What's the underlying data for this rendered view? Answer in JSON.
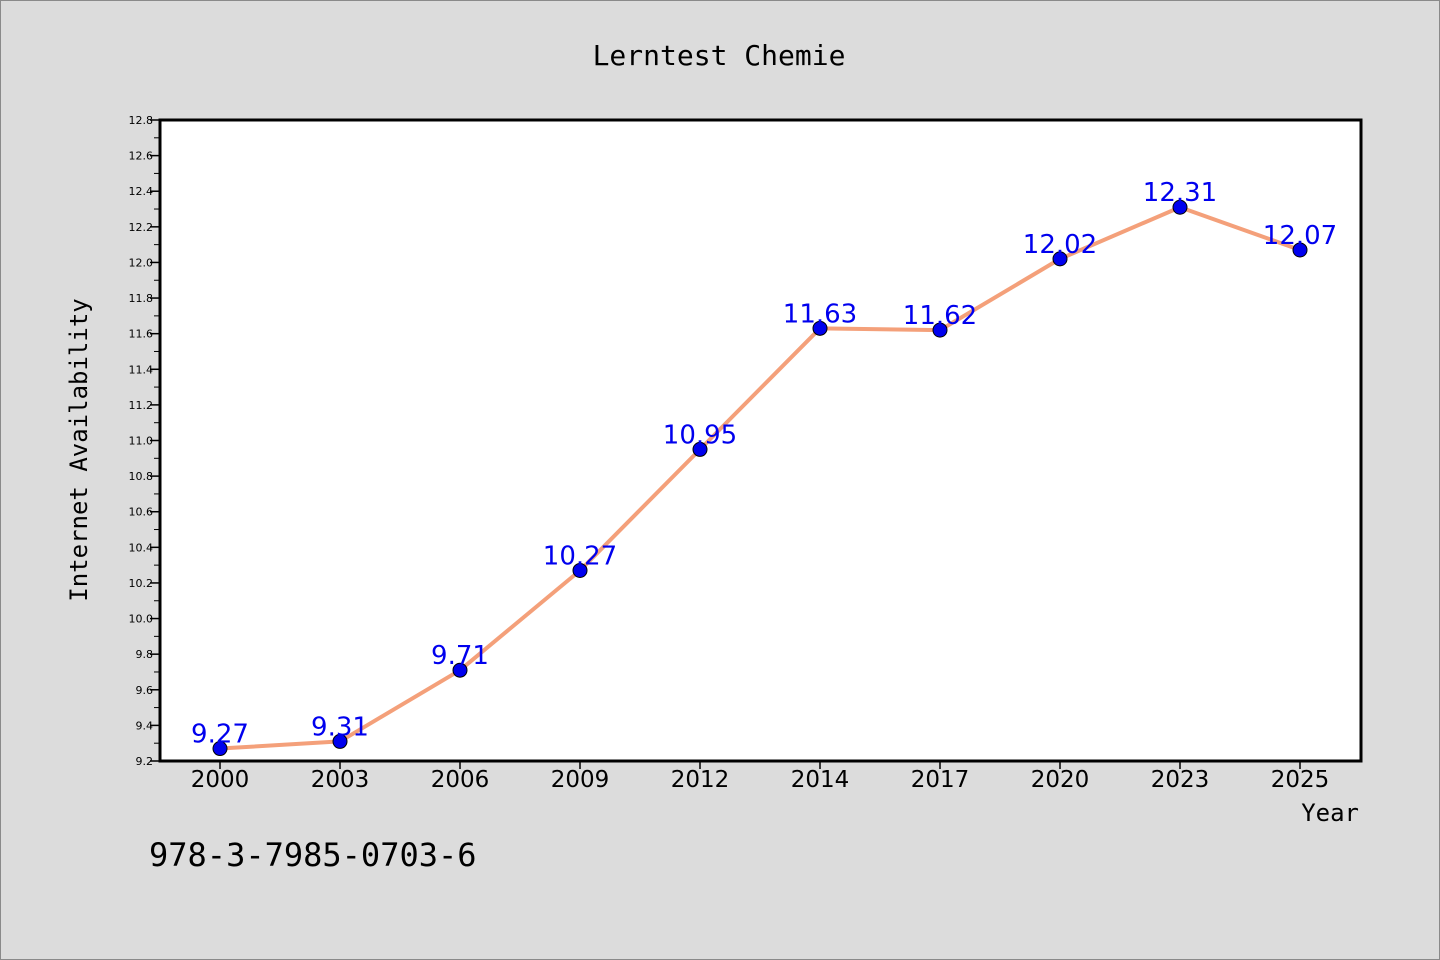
{
  "chart_data": {
    "type": "line",
    "title": "Lerntest Chemie",
    "xlabel": "Year",
    "ylabel": "Internet Availability",
    "categories": [
      "2000",
      "2003",
      "2006",
      "2009",
      "2012",
      "2014",
      "2017",
      "2020",
      "2023",
      "2025"
    ],
    "series": [
      {
        "values": [
          9.27,
          9.31,
          9.71,
          10.27,
          10.95,
          11.63,
          11.62,
          12.02,
          12.31,
          12.07
        ],
        "labels": [
          "9.27",
          "9.31",
          "9.71",
          "10.27",
          "10.95",
          "11.63",
          "11.62",
          "12.02",
          "12.31",
          "12.07"
        ],
        "line_color": "#f4a07a",
        "marker_color": "#0000ee",
        "label_color": "#0000ee"
      }
    ],
    "ylim": [
      9.2,
      12.8
    ],
    "yticks": [
      "9.2",
      "9.4",
      "9.6",
      "9.8",
      "10.0",
      "10.2",
      "10.4",
      "10.6",
      "10.8",
      "11.0",
      "11.2",
      "11.4",
      "11.6",
      "11.8",
      "12.0",
      "12.2",
      "12.4",
      "12.6",
      "12.8"
    ],
    "grid": false,
    "legend": "none"
  },
  "footer": {
    "isbn": "978-3-7985-0703-6"
  }
}
